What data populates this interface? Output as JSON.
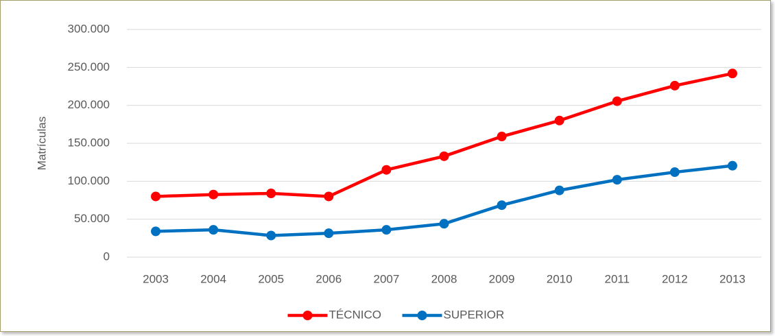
{
  "chart_data": {
    "type": "line",
    "y_label": "Matrículas",
    "categories": [
      "2003",
      "2004",
      "2005",
      "2006",
      "2007",
      "2008",
      "2009",
      "2010",
      "2011",
      "2012",
      "2013"
    ],
    "series": [
      {
        "name": "TÉCNICO",
        "color": "#ff0000",
        "values": [
          80000,
          82500,
          84000,
          80000,
          115000,
          133000,
          159000,
          180000,
          205500,
          226000,
          242000
        ]
      },
      {
        "name": "SUPERIOR",
        "color": "#0070c0",
        "values": [
          34000,
          36000,
          28500,
          31500,
          36000,
          44000,
          68500,
          88000,
          102000,
          112000,
          120500
        ]
      }
    ],
    "ylim": [
      0,
      300000
    ],
    "yticks": [
      0,
      {
        "value": 50000,
        "label": "50.000"
      },
      {
        "value": 100000,
        "label": "100.000"
      },
      {
        "value": 150000,
        "label": "150.000"
      },
      {
        "value": 200000,
        "label": "200.000"
      },
      {
        "value": 250000,
        "label": "250.000"
      },
      {
        "value": 300000,
        "label": "300.000"
      }
    ],
    "grid": true,
    "legend": "bottom"
  }
}
